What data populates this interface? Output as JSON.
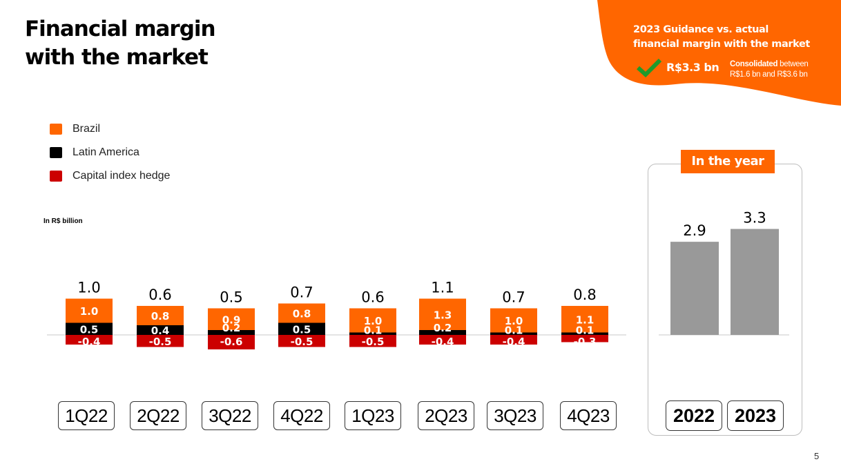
{
  "title": {
    "line1": "Financial margin",
    "line2": "with the market"
  },
  "guidance": {
    "title_line1": "2023 Guidance  vs. actual",
    "title_line2": "financial margin with the market",
    "value": "R$3.3 bn",
    "note_bold": "Consolidated",
    "note_rest": " between",
    "note_line2": "R$1.6 bn and R$3.6 bn",
    "status_icon": "checkmark-icon"
  },
  "legend": [
    {
      "label": "Brazil",
      "color": "#ff6600"
    },
    {
      "label": "Latin America",
      "color": "#000000"
    },
    {
      "label": "Capital index hedge",
      "color": "#cc0000"
    }
  ],
  "unit_label": "In R$ billion",
  "page_number": "5",
  "year_panel": {
    "title": "In the year"
  },
  "chart_data": [
    {
      "type": "bar",
      "stacked": true,
      "categories": [
        "1Q22",
        "2Q22",
        "3Q22",
        "4Q22",
        "1Q23",
        "2Q23",
        "3Q23",
        "4Q23"
      ],
      "series": [
        {
          "name": "Brazil",
          "color": "#ff6600",
          "values": [
            1.0,
            0.8,
            0.9,
            0.8,
            1.0,
            1.3,
            1.0,
            1.1
          ]
        },
        {
          "name": "Latin America",
          "color": "#000000",
          "values": [
            0.5,
            0.4,
            0.2,
            0.5,
            0.1,
            0.2,
            0.1,
            0.1
          ]
        },
        {
          "name": "Capital index hedge",
          "color": "#cc0000",
          "values": [
            -0.4,
            -0.5,
            -0.6,
            -0.5,
            -0.5,
            -0.4,
            -0.4,
            -0.3
          ]
        }
      ],
      "totals": [
        "1.0",
        "0.6",
        "0.5",
        "0.7",
        "0.6",
        "1.1",
        "0.7",
        "0.8"
      ],
      "ylabel": "In R$ billion",
      "legend_position": "top-left"
    },
    {
      "type": "bar",
      "categories": [
        "2022",
        "2023"
      ],
      "values": [
        2.9,
        3.3
      ],
      "labels": [
        "2.9",
        "3.3"
      ],
      "color": "#999999",
      "title": "In the year"
    }
  ]
}
